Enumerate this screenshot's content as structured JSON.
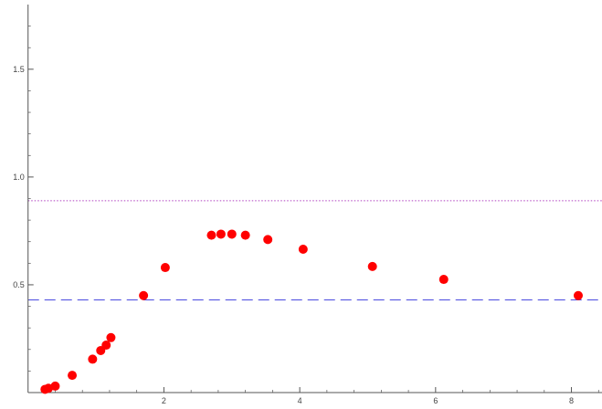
{
  "chart_data": {
    "type": "scatter",
    "title": "",
    "xlabel": "",
    "ylabel": "",
    "xlim": [
      -0.05,
      8.45
    ],
    "ylim": [
      0,
      1.8
    ],
    "x_ticks": [
      {
        "value": 2,
        "label": "2"
      },
      {
        "value": 4,
        "label": "4"
      },
      {
        "value": 6,
        "label": "6"
      },
      {
        "value": 8,
        "label": "8"
      }
    ],
    "y_ticks": [
      {
        "value": 0.5,
        "label": "0.5"
      },
      {
        "value": 1.0,
        "label": "1.0"
      },
      {
        "value": 1.5,
        "label": "1.5"
      }
    ],
    "x_minor_step": 0.4,
    "y_minor_step": 0.1,
    "grid": false,
    "points": [
      {
        "x": 0.25,
        "y": 0.015
      },
      {
        "x": 0.3,
        "y": 0.02
      },
      {
        "x": 0.4,
        "y": 0.03
      },
      {
        "x": 0.65,
        "y": 0.08
      },
      {
        "x": 0.95,
        "y": 0.155
      },
      {
        "x": 1.07,
        "y": 0.195
      },
      {
        "x": 1.15,
        "y": 0.22
      },
      {
        "x": 1.22,
        "y": 0.255
      },
      {
        "x": 1.7,
        "y": 0.45
      },
      {
        "x": 2.02,
        "y": 0.58
      },
      {
        "x": 2.7,
        "y": 0.73
      },
      {
        "x": 2.84,
        "y": 0.735
      },
      {
        "x": 3.0,
        "y": 0.735
      },
      {
        "x": 3.2,
        "y": 0.73
      },
      {
        "x": 3.53,
        "y": 0.71
      },
      {
        "x": 4.05,
        "y": 0.665
      },
      {
        "x": 5.07,
        "y": 0.585
      },
      {
        "x": 6.12,
        "y": 0.525
      },
      {
        "x": 8.1,
        "y": 0.45
      }
    ],
    "reference_lines": [
      {
        "y": 0.89,
        "style": "dotted",
        "color": "#b040c0"
      },
      {
        "y": 0.43,
        "style": "dashed",
        "color": "#4a4ae0"
      }
    ],
    "point_color": "#ff0000"
  }
}
